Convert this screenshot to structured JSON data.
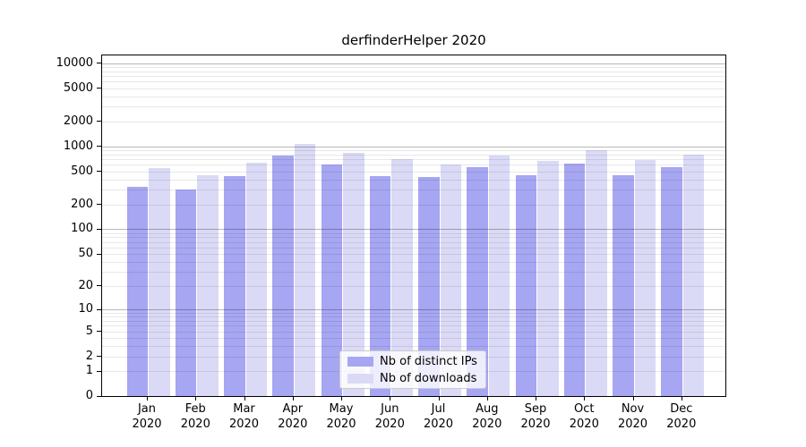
{
  "title": "derfinderHelper 2020",
  "legend": {
    "items": [
      {
        "label": "Nb of distinct IPs"
      },
      {
        "label": "Nb of downloads"
      }
    ]
  },
  "colors": {
    "bar_ips": "#a6a6f2",
    "bar_downloads": "#dadaf6",
    "grid_major": "rgba(0,0,0,0.28)",
    "grid_minor": "rgba(0,0,0,0.09)",
    "axis": "#000000",
    "text": "#000000",
    "legend_border": "#cccccc"
  },
  "chart_data": {
    "type": "bar",
    "title": "derfinderHelper 2020",
    "categories": [
      "Jan 2020",
      "Feb 2020",
      "Mar 2020",
      "Apr 2020",
      "May 2020",
      "Jun 2020",
      "Jul 2020",
      "Aug 2020",
      "Sep 2020",
      "Oct 2020",
      "Nov 2020",
      "Dec 2020"
    ],
    "months": [
      "Jan",
      "Feb",
      "Mar",
      "Apr",
      "May",
      "Jun",
      "Jul",
      "Aug",
      "Sep",
      "Oct",
      "Nov",
      "Dec"
    ],
    "year": "2020",
    "series": [
      {
        "name": "Nb of distinct IPs",
        "color": "#a6a6f2",
        "values": [
          325,
          305,
          440,
          775,
          600,
          440,
          430,
          565,
          450,
          620,
          455,
          560
        ]
      },
      {
        "name": "Nb of downloads",
        "color": "#dadaf6",
        "values": [
          555,
          450,
          635,
          1080,
          840,
          710,
          600,
          775,
          665,
          910,
          685,
          800
        ]
      }
    ],
    "y_scale": "log1p",
    "y_tick_values": [
      10000,
      5000,
      2000,
      1000,
      500,
      200,
      100,
      50,
      20,
      10,
      5,
      2,
      1,
      0
    ],
    "ylim": [
      0,
      12400
    ],
    "xlabel": "",
    "ylabel": "",
    "grid": "horizontal major+minor, drawn over bars",
    "legend_position": "lower center inside plot"
  }
}
